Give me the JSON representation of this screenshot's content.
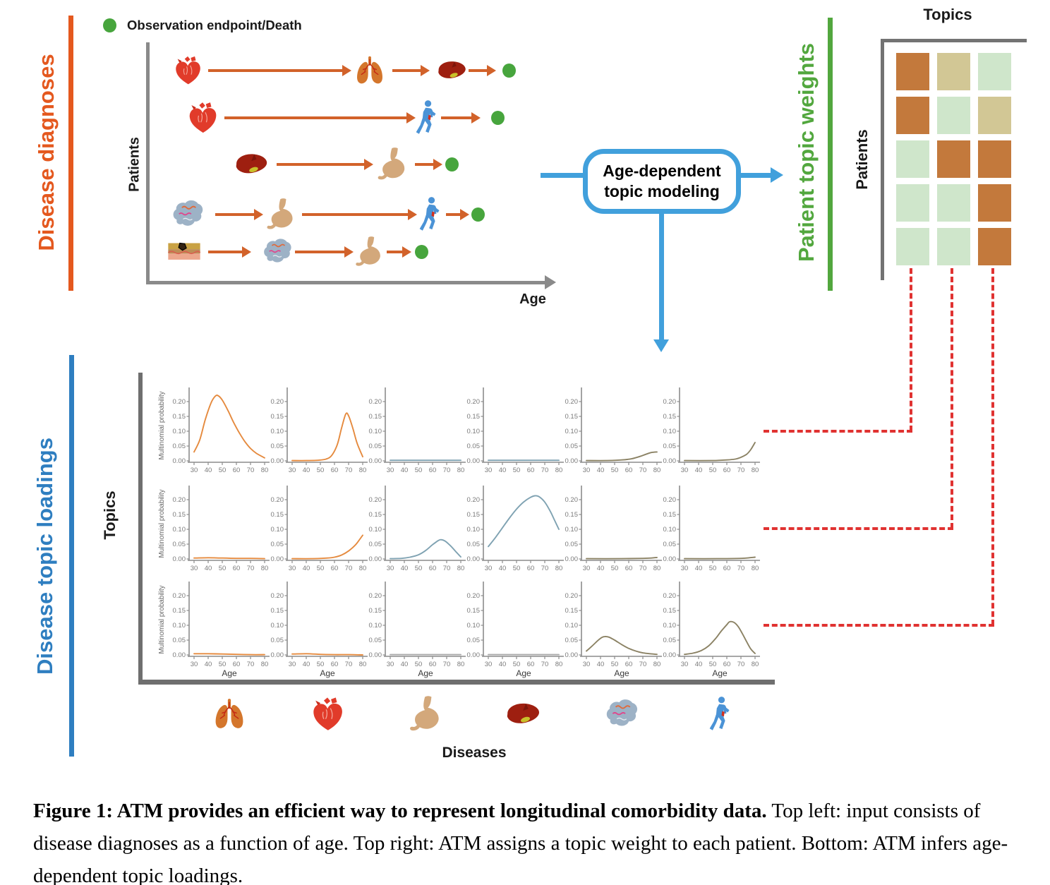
{
  "figure": {
    "top_left": {
      "side_label": "Disease diagnoses",
      "legend_label": "Observation endpoint/Death",
      "y_axis": "Patients",
      "x_axis": "Age",
      "patient_rows": [
        {
          "sequence": [
            "heart",
            "lungs",
            "liver"
          ]
        },
        {
          "sequence": [
            "heart",
            "person"
          ]
        },
        {
          "sequence": [
            "liver",
            "stomach"
          ]
        },
        {
          "sequence": [
            "brain",
            "stomach",
            "person"
          ]
        },
        {
          "sequence": [
            "skin",
            "brain",
            "stomach"
          ]
        }
      ],
      "endpoint_icon": "endpoint-dot",
      "endpoint_color": "#47a53d"
    },
    "process_box": {
      "label": "Age-dependent\ntopic modeling",
      "border_color": "#41a0dc"
    },
    "top_right": {
      "side_label": "Patient topic weights",
      "title": "Topics",
      "y_axis": "Patients",
      "cells": [
        [
          "orange",
          "tan",
          "green"
        ],
        [
          "orange",
          "green",
          "tan"
        ],
        [
          "green",
          "orange",
          "orange"
        ],
        [
          "green",
          "green",
          "orange"
        ],
        [
          "green",
          "green",
          "orange"
        ]
      ],
      "palette": {
        "orange": "#c3793c",
        "tan": "#d2c795",
        "green": "#cfe6cb"
      },
      "side_label_color": "#52a73e"
    },
    "bottom": {
      "side_label": "Disease topic loadings",
      "side_label_color": "#2e7ec0",
      "y_axis": "Topics",
      "diseases_label": "Diseases",
      "disease_icons": [
        "lungs",
        "heart",
        "stomach",
        "liver",
        "brain",
        "person"
      ],
      "topic_links": [
        {
          "topic": 1,
          "loading_row": 1
        },
        {
          "topic": 2,
          "loading_row": 2
        },
        {
          "topic": 3,
          "loading_row": 3
        }
      ],
      "connector_color": "#e03231"
    },
    "side_label_orange": "#e4581e",
    "caption": {
      "bold": "Figure 1: ATM provides an efficient way to represent longitudinal comorbidity data.",
      "rest": " Top left: input consists of disease diagnoses as a function of age. Top right: ATM assigns a topic weight to each patient. Bottom: ATM infers age-dependent topic loadings."
    }
  },
  "chart_data": {
    "type": "line",
    "grid": "3 topics x 6 diseases",
    "ylabel": "Multinomial probability",
    "xlabel": "Age",
    "x_range": [
      30,
      80
    ],
    "y_range": [
      0,
      0.22
    ],
    "x_ticks": [
      30,
      40,
      50,
      60,
      70,
      80
    ],
    "y_ticks": [
      0.2,
      0.15,
      0.1,
      0.05,
      0.0
    ],
    "curve_colors": {
      "orange": "#e58a3e",
      "teal": "#7fa2b2",
      "olive": "#8b8264",
      "gray": "#a8a8a8"
    },
    "subplots": [
      {
        "row": 1,
        "col": 1,
        "series_color": "orange",
        "points": [
          [
            30,
            0.03
          ],
          [
            34,
            0.07
          ],
          [
            38,
            0.14
          ],
          [
            42,
            0.195
          ],
          [
            45,
            0.218
          ],
          [
            47,
            0.22
          ],
          [
            50,
            0.205
          ],
          [
            54,
            0.17
          ],
          [
            58,
            0.13
          ],
          [
            62,
            0.095
          ],
          [
            66,
            0.065
          ],
          [
            70,
            0.042
          ],
          [
            74,
            0.026
          ],
          [
            80,
            0.01
          ]
        ]
      },
      {
        "row": 1,
        "col": 2,
        "series_color": "orange",
        "points": [
          [
            30,
            0.001
          ],
          [
            40,
            0.001
          ],
          [
            48,
            0.002
          ],
          [
            54,
            0.006
          ],
          [
            58,
            0.018
          ],
          [
            62,
            0.055
          ],
          [
            65,
            0.11
          ],
          [
            68,
            0.158
          ],
          [
            70,
            0.152
          ],
          [
            73,
            0.11
          ],
          [
            76,
            0.06
          ],
          [
            80,
            0.014
          ]
        ]
      },
      {
        "row": 1,
        "col": 3,
        "series_color": "teal",
        "points": [
          [
            30,
            0.002
          ],
          [
            55,
            0.002
          ],
          [
            80,
            0.002
          ]
        ]
      },
      {
        "row": 1,
        "col": 4,
        "series_color": "teal",
        "points": [
          [
            30,
            0.002
          ],
          [
            55,
            0.002
          ],
          [
            80,
            0.002
          ]
        ]
      },
      {
        "row": 1,
        "col": 5,
        "series_color": "olive",
        "points": [
          [
            30,
            0.001
          ],
          [
            45,
            0.001
          ],
          [
            55,
            0.003
          ],
          [
            62,
            0.007
          ],
          [
            68,
            0.015
          ],
          [
            72,
            0.022
          ],
          [
            76,
            0.028
          ],
          [
            80,
            0.03
          ]
        ]
      },
      {
        "row": 1,
        "col": 6,
        "series_color": "olive",
        "points": [
          [
            30,
            0.001
          ],
          [
            50,
            0.001
          ],
          [
            60,
            0.003
          ],
          [
            66,
            0.006
          ],
          [
            70,
            0.012
          ],
          [
            74,
            0.022
          ],
          [
            77,
            0.038
          ],
          [
            80,
            0.062
          ]
        ]
      },
      {
        "row": 2,
        "col": 1,
        "series_color": "orange",
        "points": [
          [
            30,
            0.003
          ],
          [
            40,
            0.004
          ],
          [
            50,
            0.003
          ],
          [
            60,
            0.002
          ],
          [
            70,
            0.002
          ],
          [
            80,
            0.001
          ]
        ]
      },
      {
        "row": 2,
        "col": 2,
        "series_color": "orange",
        "points": [
          [
            30,
            0.001
          ],
          [
            45,
            0.001
          ],
          [
            55,
            0.003
          ],
          [
            60,
            0.006
          ],
          [
            65,
            0.013
          ],
          [
            70,
            0.027
          ],
          [
            75,
            0.048
          ],
          [
            80,
            0.08
          ]
        ]
      },
      {
        "row": 2,
        "col": 3,
        "series_color": "teal",
        "points": [
          [
            30,
            0.001
          ],
          [
            38,
            0.002
          ],
          [
            44,
            0.006
          ],
          [
            50,
            0.014
          ],
          [
            55,
            0.028
          ],
          [
            60,
            0.048
          ],
          [
            64,
            0.062
          ],
          [
            66,
            0.065
          ],
          [
            69,
            0.06
          ],
          [
            73,
            0.043
          ],
          [
            77,
            0.022
          ],
          [
            80,
            0.007
          ]
        ]
      },
      {
        "row": 2,
        "col": 4,
        "series_color": "teal",
        "points": [
          [
            30,
            0.042
          ],
          [
            35,
            0.072
          ],
          [
            40,
            0.105
          ],
          [
            45,
            0.138
          ],
          [
            50,
            0.168
          ],
          [
            55,
            0.192
          ],
          [
            60,
            0.208
          ],
          [
            63,
            0.213
          ],
          [
            66,
            0.21
          ],
          [
            70,
            0.192
          ],
          [
            74,
            0.16
          ],
          [
            77,
            0.13
          ],
          [
            80,
            0.1
          ]
        ]
      },
      {
        "row": 2,
        "col": 5,
        "series_color": "olive",
        "points": [
          [
            30,
            0.001
          ],
          [
            55,
            0.001
          ],
          [
            70,
            0.002
          ],
          [
            76,
            0.003
          ],
          [
            80,
            0.005
          ]
        ]
      },
      {
        "row": 2,
        "col": 6,
        "series_color": "olive",
        "points": [
          [
            30,
            0.001
          ],
          [
            55,
            0.001
          ],
          [
            70,
            0.002
          ],
          [
            76,
            0.004
          ],
          [
            80,
            0.006
          ]
        ]
      },
      {
        "row": 3,
        "col": 1,
        "series_color": "orange",
        "points": [
          [
            30,
            0.004
          ],
          [
            40,
            0.004
          ],
          [
            50,
            0.003
          ],
          [
            60,
            0.002
          ],
          [
            70,
            0.001
          ],
          [
            80,
            0.001
          ]
        ]
      },
      {
        "row": 3,
        "col": 2,
        "series_color": "orange",
        "points": [
          [
            30,
            0.003
          ],
          [
            40,
            0.004
          ],
          [
            50,
            0.002
          ],
          [
            60,
            0.001
          ],
          [
            70,
            0.001
          ],
          [
            80,
            0.0
          ]
        ]
      },
      {
        "row": 3,
        "col": 3,
        "series_color": "gray",
        "points": [
          [
            30,
            0.001
          ],
          [
            55,
            0.001
          ],
          [
            80,
            0.001
          ]
        ]
      },
      {
        "row": 3,
        "col": 4,
        "series_color": "gray",
        "points": [
          [
            30,
            0.001
          ],
          [
            55,
            0.001
          ],
          [
            80,
            0.001
          ]
        ]
      },
      {
        "row": 3,
        "col": 5,
        "series_color": "olive",
        "points": [
          [
            30,
            0.013
          ],
          [
            34,
            0.03
          ],
          [
            38,
            0.048
          ],
          [
            41,
            0.059
          ],
          [
            43,
            0.062
          ],
          [
            46,
            0.06
          ],
          [
            50,
            0.05
          ],
          [
            55,
            0.035
          ],
          [
            60,
            0.022
          ],
          [
            65,
            0.013
          ],
          [
            70,
            0.007
          ],
          [
            75,
            0.004
          ],
          [
            80,
            0.002
          ]
        ]
      },
      {
        "row": 3,
        "col": 6,
        "series_color": "olive",
        "points": [
          [
            30,
            0.002
          ],
          [
            36,
            0.006
          ],
          [
            42,
            0.015
          ],
          [
            47,
            0.03
          ],
          [
            52,
            0.055
          ],
          [
            56,
            0.08
          ],
          [
            60,
            0.102
          ],
          [
            62,
            0.112
          ],
          [
            65,
            0.11
          ],
          [
            68,
            0.096
          ],
          [
            71,
            0.072
          ],
          [
            74,
            0.045
          ],
          [
            77,
            0.02
          ],
          [
            80,
            0.005
          ]
        ]
      }
    ]
  }
}
